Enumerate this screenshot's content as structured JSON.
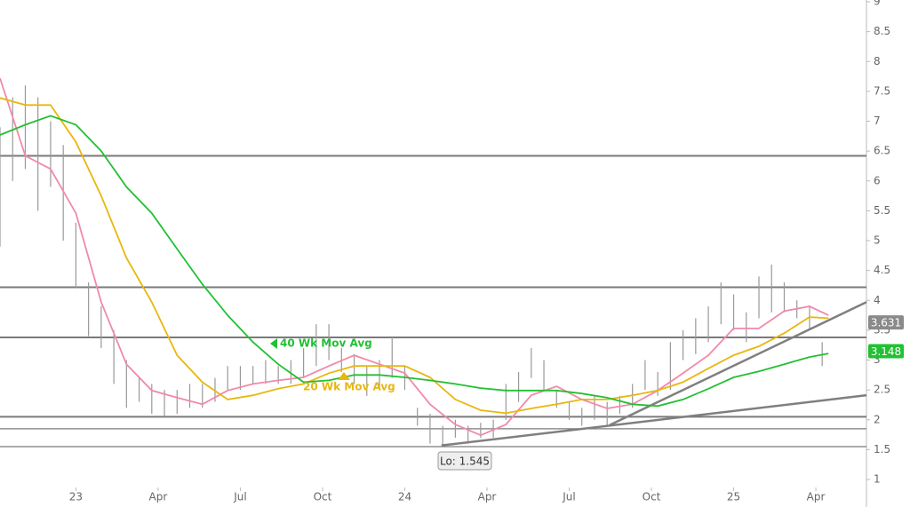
{
  "chart_data": {
    "type": "ohlc",
    "xlim": [
      -12,
      125
    ],
    "ylim": [
      1,
      9
    ],
    "xticks": [
      {
        "value": 0,
        "label": "23"
      },
      {
        "value": 13,
        "label": "Apr"
      },
      {
        "value": 26,
        "label": "Jul"
      },
      {
        "value": 39,
        "label": "Oct"
      },
      {
        "value": 52,
        "label": "24"
      },
      {
        "value": 65,
        "label": "Apr"
      },
      {
        "value": 78,
        "label": "Jul"
      },
      {
        "value": 91,
        "label": "Oct"
      },
      {
        "value": 104,
        "label": "25"
      },
      {
        "value": 117,
        "label": "Apr"
      }
    ],
    "yticks": [
      1,
      1.5,
      2,
      2.5,
      3,
      3.5,
      4,
      4.5,
      5,
      5.5,
      6,
      6.5,
      7,
      7.5,
      8,
      8.5,
      9
    ],
    "bars": {
      "color": "#999999",
      "x": [
        -12,
        -10,
        -8,
        -6,
        -4,
        -2,
        0,
        2,
        4,
        6,
        8,
        10,
        12,
        14,
        16,
        18,
        20,
        22,
        24,
        26,
        28,
        30,
        32,
        34,
        36,
        38,
        40,
        42,
        44,
        46,
        48,
        50,
        52,
        54,
        56,
        58,
        60,
        62,
        64,
        66,
        68,
        70,
        72,
        74,
        76,
        78,
        80,
        82,
        84,
        86,
        88,
        90,
        92,
        94,
        96,
        98,
        100,
        102,
        104,
        106,
        108,
        110,
        112,
        114,
        116,
        118
      ],
      "high": [
        6.9,
        7.4,
        7.6,
        7.4,
        7.0,
        6.6,
        5.3,
        4.3,
        3.9,
        3.5,
        3.0,
        2.7,
        2.6,
        2.5,
        2.5,
        2.6,
        2.6,
        2.7,
        2.9,
        2.9,
        2.9,
        3.0,
        2.9,
        3.0,
        3.2,
        3.6,
        3.6,
        3.2,
        3.1,
        2.9,
        3.0,
        3.4,
        2.9,
        2.2,
        2.1,
        1.9,
        2.0,
        1.9,
        1.95,
        2.0,
        2.6,
        2.8,
        3.2,
        3.0,
        2.5,
        2.3,
        2.2,
        2.4,
        2.3,
        2.4,
        2.6,
        3.0,
        2.8,
        3.3,
        3.5,
        3.7,
        3.9,
        4.3,
        4.1,
        3.8,
        4.4,
        4.6,
        4.3,
        4.0,
        3.9,
        3.3
      ],
      "low": [
        4.9,
        6.0,
        6.2,
        5.5,
        5.9,
        5.0,
        4.2,
        3.4,
        3.2,
        2.6,
        2.2,
        2.3,
        2.1,
        2.05,
        2.1,
        2.2,
        2.2,
        2.3,
        2.5,
        2.5,
        2.6,
        2.6,
        2.6,
        2.6,
        2.7,
        2.9,
        3.0,
        2.8,
        2.6,
        2.4,
        2.5,
        2.7,
        2.5,
        1.9,
        1.6,
        1.55,
        1.7,
        1.6,
        1.7,
        1.7,
        2.0,
        2.3,
        2.7,
        2.5,
        2.2,
        2.0,
        1.9,
        2.0,
        1.9,
        2.1,
        2.2,
        2.5,
        2.4,
        2.5,
        3.0,
        3.1,
        3.3,
        3.6,
        3.5,
        3.3,
        3.7,
        3.8,
        3.8,
        3.7,
        3.5,
        2.9
      ]
    },
    "x": [
      -12,
      -8,
      -4,
      0,
      4,
      8,
      12,
      16,
      20,
      24,
      28,
      32,
      36,
      40,
      44,
      48,
      52,
      56,
      60,
      64,
      68,
      72,
      76,
      80,
      84,
      88,
      92,
      96,
      100,
      104,
      108,
      112,
      116,
      119
    ],
    "series": [
      {
        "color": "#f08aa8",
        "values": [
          7.72,
          6.42,
          6.2,
          5.46,
          3.97,
          2.93,
          2.49,
          2.37,
          2.26,
          2.49,
          2.6,
          2.66,
          2.71,
          2.9,
          3.08,
          2.93,
          2.78,
          2.26,
          1.92,
          1.74,
          1.92,
          2.41,
          2.56,
          2.34,
          2.19,
          2.26,
          2.49,
          2.78,
          3.08,
          3.53,
          3.53,
          3.82,
          3.9,
          3.75
        ]
      },
      {
        "name": "20 Wk Mov Avg",
        "color": "#e8b70f",
        "values": [
          7.39,
          7.27,
          7.27,
          6.65,
          5.75,
          4.71,
          3.97,
          3.08,
          2.63,
          2.34,
          2.41,
          2.52,
          2.6,
          2.78,
          2.9,
          2.9,
          2.9,
          2.71,
          2.34,
          2.16,
          2.11,
          2.19,
          2.26,
          2.34,
          2.34,
          2.41,
          2.49,
          2.63,
          2.86,
          3.08,
          3.23,
          3.45,
          3.72,
          3.7
        ]
      },
      {
        "name": "40 Wk Mov Avg",
        "color": "#22c033",
        "values": [
          6.77,
          6.94,
          7.09,
          6.94,
          6.5,
          5.9,
          5.46,
          4.86,
          4.27,
          3.75,
          3.3,
          2.93,
          2.63,
          2.66,
          2.75,
          2.75,
          2.71,
          2.66,
          2.6,
          2.53,
          2.49,
          2.49,
          2.49,
          2.44,
          2.37,
          2.26,
          2.23,
          2.34,
          2.52,
          2.71,
          2.81,
          2.93,
          3.05,
          3.11
        ]
      }
    ],
    "levels": [
      6.42,
      4.22,
      3.38,
      2.05,
      1.85,
      1.55
    ],
    "trendlines": [
      {
        "x": [
          57.8,
          125
        ],
        "values": [
          1.57,
          2.41
        ]
      },
      {
        "x": [
          84.4,
          125
        ],
        "values": [
          1.91,
          3.97
        ]
      }
    ],
    "low": {
      "value": 1.545,
      "label": "Lo: 1.545"
    },
    "last_labels": [
      {
        "value": 3.631,
        "color": "#8a8a8a"
      },
      {
        "value": 3.148,
        "color": "#22c033"
      }
    ]
  }
}
